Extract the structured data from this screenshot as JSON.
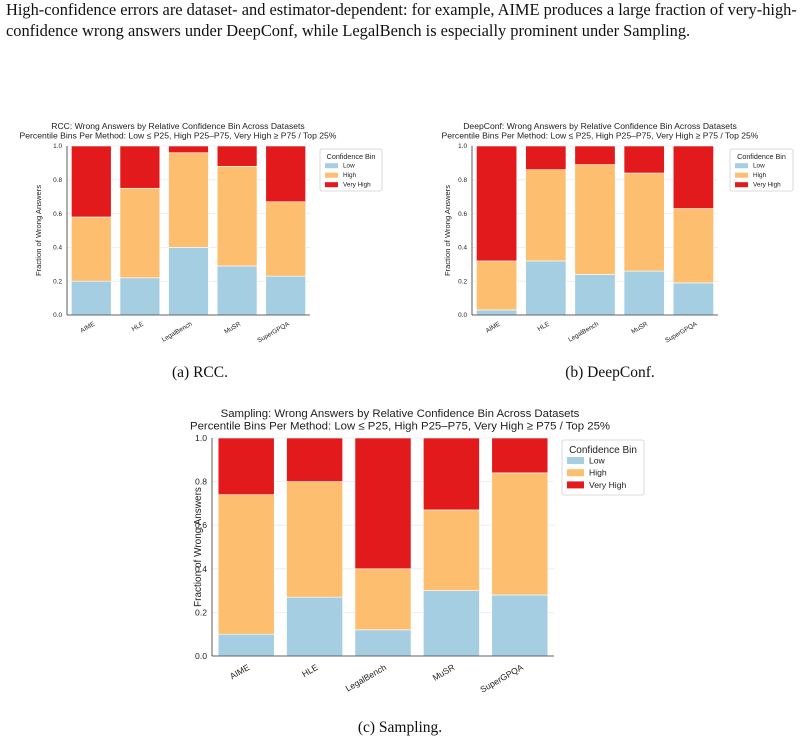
{
  "intro_text": "High-confidence errors are dataset- and estimator-dependent: for example, AIME produces a large fraction of very-high-confidence wrong answers under DeepConf, while LegalBench is especially prominent under Sampling.",
  "colors": {
    "low": "#a6cee3",
    "high": "#fdbf6f",
    "very_high": "#e31a1c"
  },
  "captions": {
    "a": "(a) RCC.",
    "b": "(b) DeepConf.",
    "c": "(c) Sampling."
  },
  "chart_data": [
    {
      "type": "bar",
      "stacked": true,
      "title": "RCC: Wrong Answers by Relative Confidence Bin Across Datasets",
      "subtitle": "Percentile Bins Per Method: Low ≤ P25, High P25–P75, Very High ≥ P75 / Top 25%",
      "ylabel": "Fraction of Wrong Answers",
      "ylim": [
        0,
        1.0
      ],
      "yticks": [
        "0.0",
        "0.2",
        "0.4",
        "0.6",
        "0.8",
        "1.0"
      ],
      "categories": [
        "AIME",
        "HLE",
        "LegalBench",
        "MuSR",
        "SuperGPQA"
      ],
      "legend": {
        "title": "Confidence Bin",
        "placement": "right"
      },
      "series": [
        {
          "name": "Low",
          "values": [
            0.2,
            0.22,
            0.4,
            0.29,
            0.23
          ]
        },
        {
          "name": "High",
          "values": [
            0.38,
            0.53,
            0.56,
            0.59,
            0.44
          ]
        },
        {
          "name": "Very High",
          "values": [
            0.42,
            0.25,
            0.04,
            0.12,
            0.33
          ]
        }
      ]
    },
    {
      "type": "bar",
      "stacked": true,
      "title": "DeepConf: Wrong Answers by Relative Confidence Bin Across Datasets",
      "subtitle": "Percentile Bins Per Method: Low ≤ P25, High P25–P75, Very High ≥ P75 / Top 25%",
      "ylabel": "Fraction of Wrong Answers",
      "ylim": [
        0,
        1.0
      ],
      "yticks": [
        "0.0",
        "0.2",
        "0.4",
        "0.6",
        "0.8",
        "1.0"
      ],
      "categories": [
        "AIME",
        "HLE",
        "LegalBench",
        "MuSR",
        "SuperGPQA"
      ],
      "legend": {
        "title": "Confidence Bin",
        "placement": "right"
      },
      "series": [
        {
          "name": "Low",
          "values": [
            0.03,
            0.32,
            0.24,
            0.26,
            0.19
          ]
        },
        {
          "name": "High",
          "values": [
            0.29,
            0.54,
            0.65,
            0.58,
            0.44
          ]
        },
        {
          "name": "Very High",
          "values": [
            0.68,
            0.14,
            0.11,
            0.16,
            0.37
          ]
        }
      ]
    },
    {
      "type": "bar",
      "stacked": true,
      "title": "Sampling: Wrong Answers by Relative Confidence Bin Across Datasets",
      "subtitle": "Percentile Bins Per Method: Low ≤ P25, High P25–P75, Very High ≥ P75 / Top 25%",
      "ylabel": "Fraction of Wrong Answers",
      "ylim": [
        0,
        1.0
      ],
      "yticks": [
        "0.0",
        "0.2",
        "0.4",
        "0.6",
        "0.8",
        "1.0"
      ],
      "categories": [
        "AIME",
        "HLE",
        "LegalBench",
        "MuSR",
        "SuperGPQA"
      ],
      "legend": {
        "title": "Confidence Bin",
        "placement": "right"
      },
      "series": [
        {
          "name": "Low",
          "values": [
            0.1,
            0.27,
            0.12,
            0.3,
            0.28
          ]
        },
        {
          "name": "High",
          "values": [
            0.64,
            0.53,
            0.28,
            0.37,
            0.56
          ]
        },
        {
          "name": "Very High",
          "values": [
            0.26,
            0.2,
            0.6,
            0.33,
            0.16
          ]
        }
      ]
    }
  ]
}
